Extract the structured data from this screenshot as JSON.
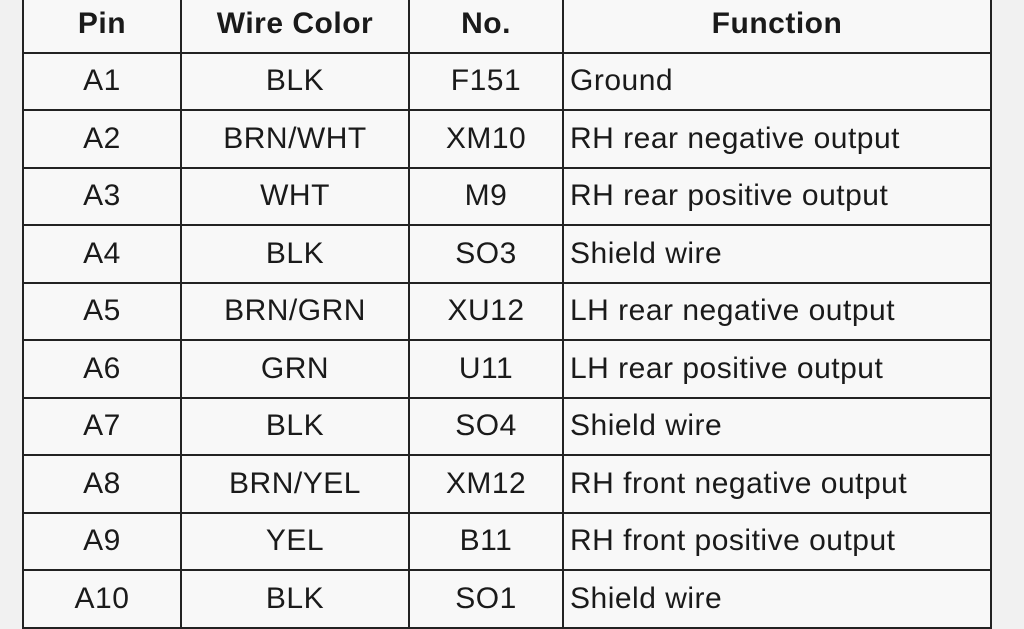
{
  "headers": [
    "Pin",
    "Wire Color",
    "No.",
    "Function"
  ],
  "rows": [
    [
      "A1",
      "BLK",
      "F151",
      "Ground"
    ],
    [
      "A2",
      "BRN/WHT",
      "XM10",
      "RH rear negative output"
    ],
    [
      "A3",
      "WHT",
      "M9",
      "RH rear positive output"
    ],
    [
      "A4",
      "BLK",
      "SO3",
      "Shield wire"
    ],
    [
      "A5",
      "BRN/GRN",
      "XU12",
      "LH rear negative output"
    ],
    [
      "A6",
      "GRN",
      "U11",
      "LH rear positive output"
    ],
    [
      "A7",
      "BLK",
      "SO4",
      "Shield wire"
    ],
    [
      "A8",
      "BRN/YEL",
      "XM12",
      "RH front negative output"
    ],
    [
      "A9",
      "YEL",
      "B11",
      "RH front positive output"
    ],
    [
      "A10",
      "BLK",
      "SO1",
      "Shield wire"
    ]
  ]
}
